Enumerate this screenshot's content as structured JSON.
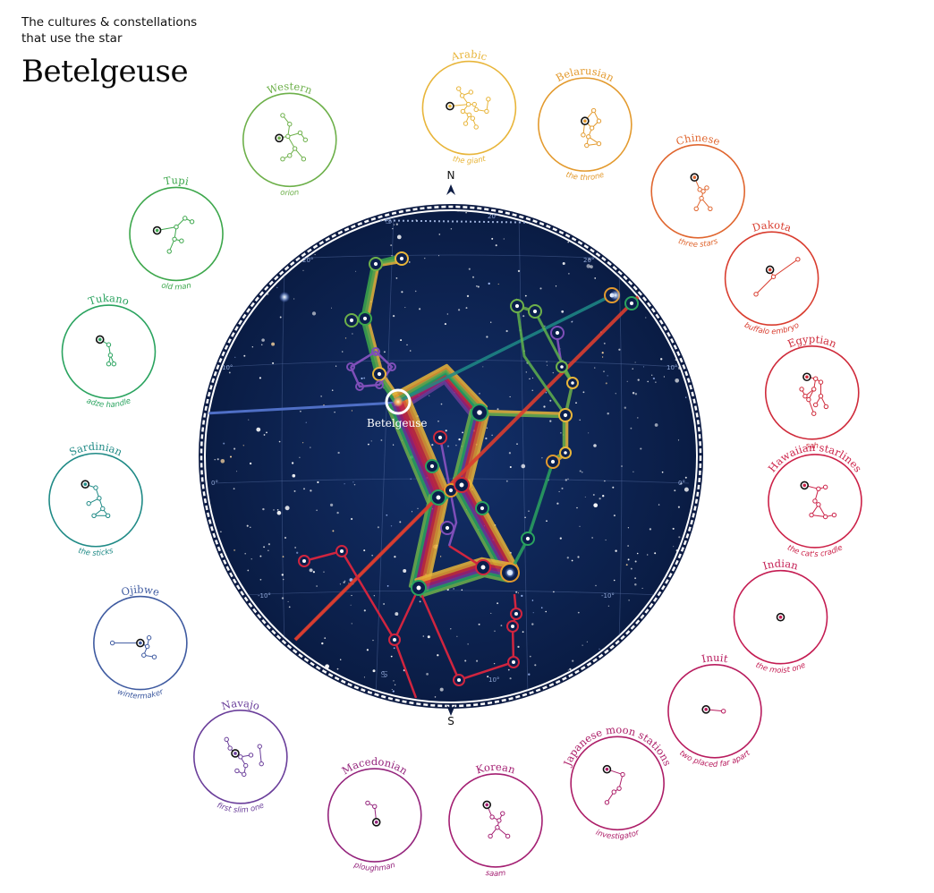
{
  "header": {
    "subtitle": "The cultures & constellations\nthat use the star",
    "title": "Betelgeuse"
  },
  "star_label": "Betelgeuse",
  "compass": {
    "north": "N",
    "south": "S"
  },
  "grid_labels": {
    "dec_left": [
      "20°",
      "10°",
      "0°",
      "-10°"
    ],
    "dec_right": [
      "20°",
      "10°",
      "0°",
      "-10°"
    ],
    "top": "20°",
    "bottom_right": "10°"
  },
  "colors": {
    "sky": "#0b1f4d",
    "ring": "#0d1c44",
    "star_highlight": "#ffffff"
  },
  "cultures": [
    {
      "name": "Arabic",
      "meaning": "the giant",
      "color": "#e8b53a"
    },
    {
      "name": "Belarusian",
      "meaning": "the throne",
      "color": "#e39a2e"
    },
    {
      "name": "Chinese",
      "meaning": "three stars",
      "color": "#e0662f"
    },
    {
      "name": "Dakota",
      "meaning": "buffalo embryo",
      "color": "#d93d2f"
    },
    {
      "name": "Egyptian",
      "meaning": "sah",
      "color": "#cf2a3a"
    },
    {
      "name": "Hawaiian starlines",
      "meaning": "the cat's cradle",
      "color": "#cc2148"
    },
    {
      "name": "Indian",
      "meaning": "the moist one",
      "color": "#c41c52"
    },
    {
      "name": "Inuit",
      "meaning": "two placed far apart",
      "color": "#b81c5e"
    },
    {
      "name": "Japanese moon stations",
      "meaning": "investigator",
      "color": "#ad1e68"
    },
    {
      "name": "Korean",
      "meaning": "saam",
      "color": "#a41f72"
    },
    {
      "name": "Macedonian",
      "meaning": "ploughman",
      "color": "#94247c"
    },
    {
      "name": "Navajo",
      "meaning": "first slim one",
      "color": "#6a3e9a"
    },
    {
      "name": "Ojibwe",
      "meaning": "wintermaker",
      "color": "#3e5aa0"
    },
    {
      "name": "Sardinian",
      "meaning": "the sticks",
      "color": "#1f8a86"
    },
    {
      "name": "Tukano",
      "meaning": "adze handle",
      "color": "#2aa35f"
    },
    {
      "name": "Tupi",
      "meaning": "old man",
      "color": "#3da74c"
    },
    {
      "name": "Western",
      "meaning": "orion",
      "color": "#6db04a"
    }
  ]
}
